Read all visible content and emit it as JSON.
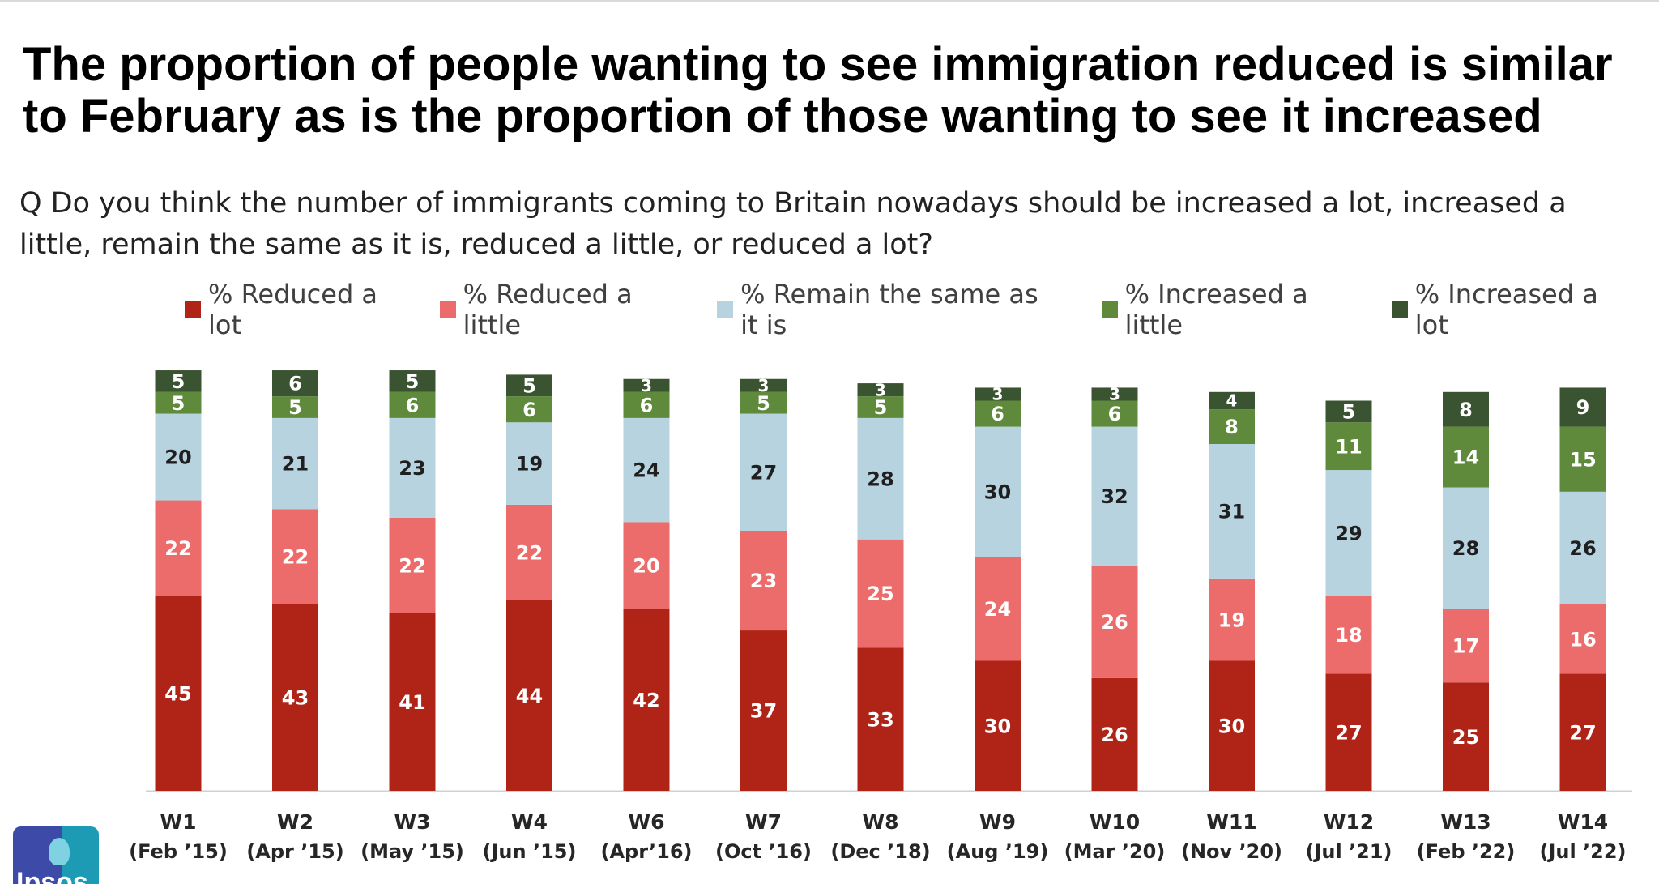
{
  "header": {
    "title": "The proportion of people wanting to see immigration reduced is similar to February as is the proportion of those wanting to see it increased",
    "question": "Q Do you think the number of immigrants coming to Britain nowadays should be increased a lot, increased a little, remain the same as it is, reduced a little, or reduced a lot?"
  },
  "logo": {
    "text": "Ipsos",
    "icon": "ipsos-logo-icon"
  },
  "colors": {
    "reduced_lot": "#b02418",
    "reduced_little": "#ec6b6b",
    "remain_same": "#b7d3e0",
    "increased_little": "#5f8a3b",
    "increased_lot": "#3a5330",
    "axis_line": "#d0d0d0"
  },
  "chart_data": {
    "type": "bar",
    "stacked": true,
    "note": "",
    "title": "",
    "xlabel": "",
    "ylabel": "",
    "ylim": [
      0,
      100
    ],
    "grid": false,
    "legend_position": "top",
    "categories": [
      {
        "wave": "W1",
        "date": "(Feb ’15)"
      },
      {
        "wave": "W2",
        "date": "(Apr ’15)"
      },
      {
        "wave": "W3",
        "date": "(May ’15)"
      },
      {
        "wave": "W4",
        "date": "(Jun ’15)"
      },
      {
        "wave": "W6",
        "date": "(Apr’16)"
      },
      {
        "wave": "W7",
        "date": "(Oct ’16)"
      },
      {
        "wave": "W8",
        "date": "(Dec ’18)"
      },
      {
        "wave": "W9",
        "date": "(Aug ’19)"
      },
      {
        "wave": "W10",
        "date": "(Mar ’20)"
      },
      {
        "wave": "W11",
        "date": "(Nov ’20)"
      },
      {
        "wave": "W12",
        "date": "(Jul ’21)"
      },
      {
        "wave": "W13",
        "date": "(Feb ’22)"
      },
      {
        "wave": "W14",
        "date": "(Jul ’22)"
      }
    ],
    "series": [
      {
        "key": "reduced_lot",
        "name": "% Reduced a lot",
        "label_color": "#ffffff",
        "values": [
          45,
          43,
          41,
          44,
          42,
          37,
          33,
          30,
          26,
          30,
          27,
          25,
          27
        ]
      },
      {
        "key": "reduced_little",
        "name": "% Reduced a little",
        "label_color": "#ffffff",
        "values": [
          22,
          22,
          22,
          22,
          20,
          23,
          25,
          24,
          26,
          19,
          18,
          17,
          16
        ]
      },
      {
        "key": "remain_same",
        "name": "% Remain the same as it is",
        "label_color": "#1f1f1f",
        "values": [
          20,
          21,
          23,
          19,
          24,
          27,
          28,
          30,
          32,
          31,
          29,
          28,
          26
        ]
      },
      {
        "key": "increased_little",
        "name": "% Increased a little",
        "label_color": "#ffffff",
        "values": [
          5,
          5,
          6,
          6,
          6,
          5,
          5,
          6,
          6,
          8,
          11,
          14,
          15
        ]
      },
      {
        "key": "increased_lot",
        "name": "% Increased a lot",
        "label_color": "#ffffff",
        "values": [
          5,
          6,
          5,
          5,
          3,
          3,
          3,
          3,
          3,
          4,
          5,
          8,
          9
        ]
      }
    ]
  }
}
